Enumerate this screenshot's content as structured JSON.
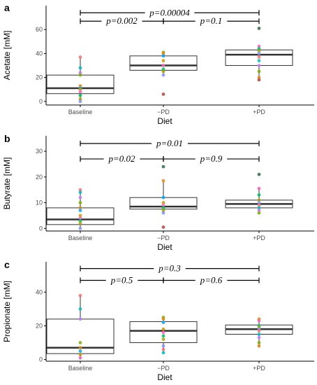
{
  "chart_data": [
    {
      "type": "boxplot",
      "panel": "a",
      "categories": [
        "Baseline",
        "−PD",
        "+PD"
      ],
      "xlabel": "Diet",
      "ylabel": "Acetate [mM]",
      "ylim": [
        -3,
        80
      ],
      "yticks": [
        0,
        20,
        40,
        60
      ],
      "grid": false,
      "boxes": [
        {
          "q1": 6.5,
          "median": 11,
          "q3": 22,
          "whisker_low": 0,
          "whisker_high": 37
        },
        {
          "q1": 26,
          "median": 30,
          "q3": 38,
          "whisker_low": 22,
          "whisker_high": 41
        },
        {
          "q1": 30,
          "median": 39,
          "q3": 43,
          "whisker_low": 20,
          "whisker_high": 47
        }
      ],
      "points": [
        [
          37,
          28,
          24,
          22,
          13,
          11,
          10,
          8,
          5,
          2,
          0
        ],
        [
          41,
          40,
          38,
          34,
          30,
          27,
          25,
          22,
          6
        ],
        [
          61,
          46,
          44,
          42,
          40,
          37,
          34,
          30,
          25,
          20,
          18
        ]
      ],
      "comparisons": [
        {
          "from": 0,
          "to": 1,
          "label": "p=0.002",
          "y": 67
        },
        {
          "from": 1,
          "to": 2,
          "label": "p=0.1",
          "y": 67
        },
        {
          "from": 0,
          "to": 2,
          "label": "p=0.00004",
          "y": 74
        }
      ]
    },
    {
      "type": "boxplot",
      "panel": "b",
      "categories": [
        "Baseline",
        "−PD",
        "+PD"
      ],
      "xlabel": "Diet",
      "ylabel": "Butyrate [mM]",
      "ylim": [
        -1,
        36
      ],
      "yticks": [
        0,
        10,
        20,
        30
      ],
      "grid": false,
      "boxes": [
        {
          "q1": 1.5,
          "median": 3.5,
          "q3": 8,
          "whisker_low": 0,
          "whisker_high": 15
        },
        {
          "q1": 7.5,
          "median": 8.5,
          "q3": 12,
          "whisker_low": 6,
          "whisker_high": 18
        },
        {
          "q1": 8,
          "median": 9.5,
          "q3": 11,
          "whisker_low": 6,
          "whisker_high": 16
        }
      ],
      "points": [
        [
          15,
          14,
          12,
          10,
          8,
          7,
          5,
          4,
          3,
          2,
          0
        ],
        [
          24,
          18.5,
          12,
          10,
          9,
          8,
          7,
          6,
          0.5
        ],
        [
          21,
          15.5,
          13,
          11,
          10,
          9,
          8,
          7,
          6
        ]
      ],
      "comparisons": [
        {
          "from": 0,
          "to": 1,
          "label": "p=0.02",
          "y": 27
        },
        {
          "from": 1,
          "to": 2,
          "label": "p=0.9",
          "y": 27
        },
        {
          "from": 0,
          "to": 2,
          "label": "p=0.01",
          "y": 33
        }
      ]
    },
    {
      "type": "boxplot",
      "panel": "c",
      "categories": [
        "Baseline",
        "−PD",
        "+PD"
      ],
      "xlabel": "Diet",
      "ylabel": "Propionate [mM]",
      "ylim": [
        -1,
        58
      ],
      "yticks": [
        0,
        20,
        40
      ],
      "grid": false,
      "boxes": [
        {
          "q1": 3.5,
          "median": 7,
          "q3": 24,
          "whisker_low": 0,
          "whisker_high": 38
        },
        {
          "q1": 10,
          "median": 17,
          "q3": 22.5,
          "whisker_low": 4,
          "whisker_high": 25
        },
        {
          "q1": 15,
          "median": 18,
          "q3": 20.5,
          "whisker_low": 7.5,
          "whisker_high": 24
        }
      ],
      "points": [
        [
          38,
          30,
          24,
          10,
          7,
          5,
          3,
          1
        ],
        [
          25,
          24,
          22,
          18,
          16,
          14,
          12,
          8,
          6,
          4
        ],
        [
          24,
          23,
          20,
          19,
          18,
          17,
          15,
          13,
          10,
          8
        ]
      ],
      "comparisons": [
        {
          "from": 0,
          "to": 1,
          "label": "p=0.5",
          "y": 47
        },
        {
          "from": 1,
          "to": 2,
          "label": "p=0.6",
          "y": 47
        },
        {
          "from": 0,
          "to": 2,
          "label": "p=0.3",
          "y": 54
        }
      ]
    }
  ],
  "point_colors": [
    "#F8766D",
    "#00BFC4",
    "#C77CFF",
    "#7CAE00",
    "#E68613",
    "#00A9FF",
    "#CD9600",
    "#FF61C3",
    "#00BE67",
    "#ABA300",
    "#8494FF"
  ],
  "colors": {
    "box_stroke": "#333333",
    "axis": "#000000",
    "tick_label": "#4d4d4d",
    "outlier_dark": "#2F6A4A"
  }
}
